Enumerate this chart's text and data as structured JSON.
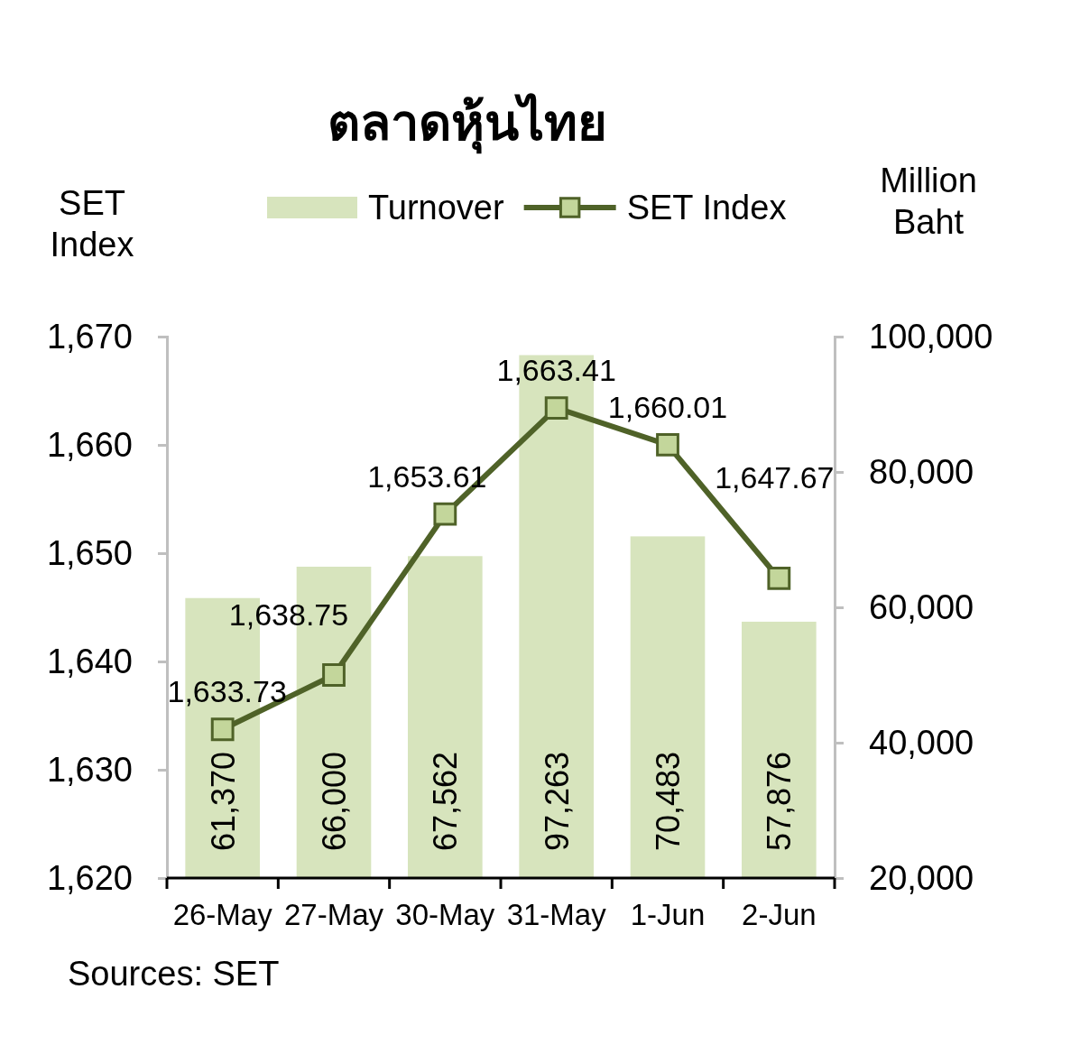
{
  "chart_data": {
    "type": "bar",
    "title": "ตลาดหุ้นไทย",
    "ylabel": "SET Index",
    "y2label": "Million Baht",
    "categories": [
      "26-May",
      "27-May",
      "30-May",
      "31-May",
      "1-Jun",
      "2-Jun"
    ],
    "series": [
      {
        "name": "Turnover",
        "axis": "y2",
        "color": "#d7e4bd",
        "values": [
          61370,
          66000,
          67562,
          97263,
          70483,
          57876
        ],
        "value_labels": [
          "61,370",
          "66,000",
          "67,562",
          "97,263",
          "70,483",
          "57,876"
        ]
      },
      {
        "name": "SET Index",
        "type": "line",
        "axis": "y",
        "color": "#4f6228",
        "values": [
          1633.73,
          1638.75,
          1653.61,
          1663.41,
          1660.01,
          1647.67
        ],
        "value_labels": [
          "1,633.73",
          "1,638.75",
          "1,653.61",
          "1,663.41",
          "1,660.01",
          "1,647.67"
        ]
      }
    ],
    "ylim": [
      1620,
      1670
    ],
    "yticks": [
      {
        "value": 1620,
        "label": "1,620"
      },
      {
        "value": 1630,
        "label": "1,630"
      },
      {
        "value": 1640,
        "label": "1,640"
      },
      {
        "value": 1650,
        "label": "1,650"
      },
      {
        "value": 1660,
        "label": "1,660"
      },
      {
        "value": 1670,
        "label": "1,670"
      }
    ],
    "y2lim": [
      20000,
      100000
    ],
    "y2ticks": [
      {
        "value": 20000,
        "label": "20,000"
      },
      {
        "value": 40000,
        "label": "40,000"
      },
      {
        "value": 60000,
        "label": "60,000"
      },
      {
        "value": 80000,
        "label": "80,000"
      },
      {
        "value": 100000,
        "label": "100,000"
      }
    ],
    "legend": "top",
    "marker": "square",
    "grid": false,
    "annotations": [
      "Sources: SET"
    ]
  }
}
